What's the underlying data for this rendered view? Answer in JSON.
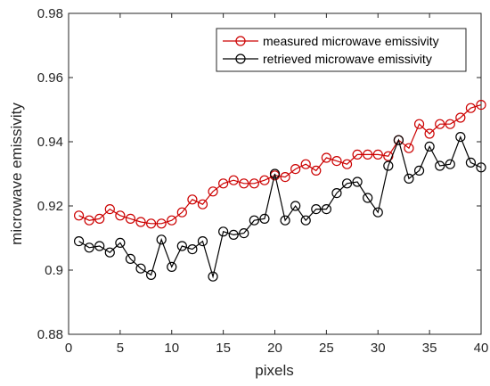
{
  "chart_data": {
    "type": "line",
    "xlabel": "pixels",
    "ylabel": "microwave emissivity",
    "xlim": [
      0,
      40
    ],
    "ylim": [
      0.88,
      0.98
    ],
    "xticks": [
      0,
      5,
      10,
      15,
      20,
      25,
      30,
      35,
      40
    ],
    "yticks": [
      0.88,
      0.9,
      0.92,
      0.94,
      0.96,
      0.98
    ],
    "xtick_labels": [
      "0",
      "5",
      "10",
      "15",
      "20",
      "25",
      "30",
      "35",
      "40"
    ],
    "ytick_labels": [
      "0.88",
      "0.9",
      "0.92",
      "0.94",
      "0.96",
      "0.98"
    ],
    "grid": false,
    "legend_position": "top-right",
    "x": [
      1,
      2,
      3,
      4,
      5,
      6,
      7,
      8,
      9,
      10,
      11,
      12,
      13,
      14,
      15,
      16,
      17,
      18,
      19,
      20,
      21,
      22,
      23,
      24,
      25,
      26,
      27,
      28,
      29,
      30,
      31,
      32,
      33,
      34,
      35,
      36,
      37,
      38,
      39,
      40
    ],
    "series": [
      {
        "name": "measured microwave emissivity",
        "color": "#cc0000",
        "marker": "circle",
        "values": [
          0.917,
          0.9155,
          0.916,
          0.919,
          0.917,
          0.916,
          0.915,
          0.9145,
          0.9145,
          0.9155,
          0.918,
          0.922,
          0.9205,
          0.9245,
          0.927,
          0.928,
          0.927,
          0.927,
          0.928,
          0.9295,
          0.929,
          0.9315,
          0.933,
          0.931,
          0.935,
          0.934,
          0.933,
          0.936,
          0.936,
          0.936,
          0.9355,
          0.9405,
          0.938,
          0.9455,
          0.9425,
          0.9455,
          0.9455,
          0.9475,
          0.9505,
          0.9515
        ]
      },
      {
        "name": "retrieved microwave emissivity",
        "color": "#000000",
        "marker": "circle",
        "values": [
          0.909,
          0.907,
          0.9075,
          0.9055,
          0.9085,
          0.9035,
          0.9005,
          0.8985,
          0.9095,
          0.901,
          0.9075,
          0.9065,
          0.909,
          0.898,
          0.912,
          0.911,
          0.9115,
          0.9155,
          0.916,
          0.93,
          0.9155,
          0.92,
          0.9155,
          0.919,
          0.919,
          0.924,
          0.927,
          0.9275,
          0.9225,
          0.918,
          0.9325,
          0.9405,
          0.9285,
          0.931,
          0.9385,
          0.9325,
          0.933,
          0.9415,
          0.9335,
          0.932
        ]
      }
    ]
  }
}
